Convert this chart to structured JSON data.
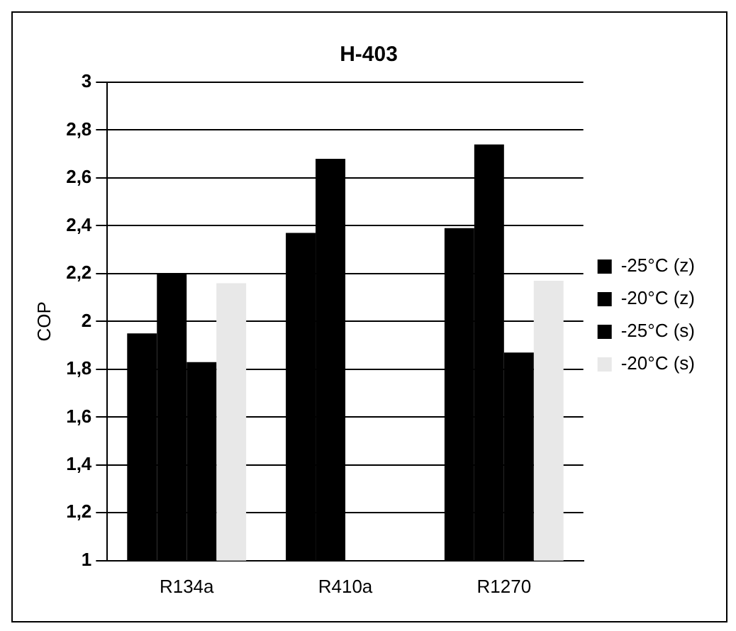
{
  "chart_data": {
    "type": "bar",
    "title": "H-403",
    "ylabel": "COP",
    "categories": [
      "R134a",
      "R410a",
      "R1270"
    ],
    "series": [
      {
        "name": "-25°C (z)",
        "color": "#000000",
        "values": [
          1.95,
          2.37,
          2.39
        ]
      },
      {
        "name": "-20°C (z)",
        "color": "#000000",
        "values": [
          2.2,
          2.68,
          2.74
        ]
      },
      {
        "name": "-25°C (s)",
        "color": "#000000",
        "values": [
          1.83,
          null,
          1.87
        ]
      },
      {
        "name": "-20°C (s)",
        "color": "#e8e8e8",
        "values": [
          2.16,
          null,
          2.17
        ]
      }
    ],
    "ylim": [
      1,
      3
    ],
    "yticks": [
      1,
      {
        "value": 1.2,
        "label": "1,2"
      },
      {
        "value": 1.4,
        "label": "1,4"
      },
      {
        "value": 1.6,
        "label": "1,6"
      },
      {
        "value": 1.8,
        "label": "1,8"
      },
      2,
      {
        "value": 2.2,
        "label": "2,2"
      },
      {
        "value": 2.4,
        "label": "2,4"
      },
      {
        "value": 2.6,
        "label": "2,6"
      },
      {
        "value": 2.8,
        "label": "2,8"
      },
      3
    ],
    "grid": "y",
    "legend": "right"
  }
}
